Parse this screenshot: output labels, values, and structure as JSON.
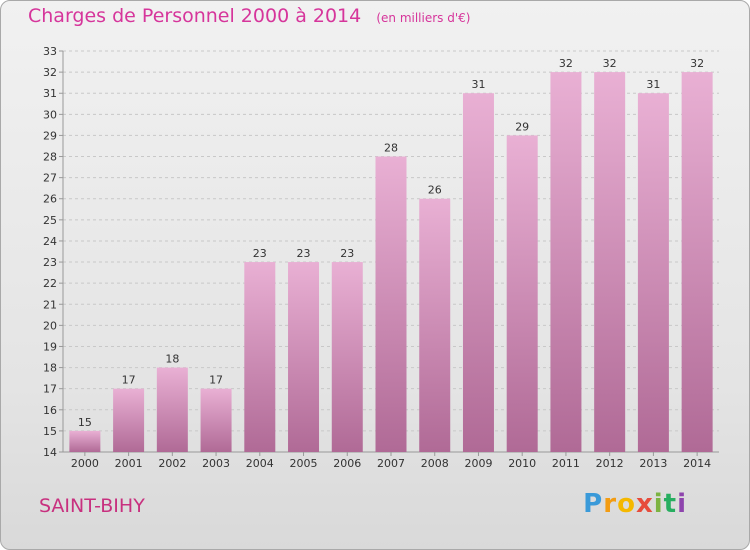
{
  "title": "Charges de Personnel 2000 à 2014",
  "subtitle": "(en milliers d'€)",
  "city": "SAINT-BIHY",
  "brand": {
    "letters": [
      "P",
      "r",
      "o",
      "x",
      "i",
      "t",
      "i"
    ],
    "colors": [
      "#3a9ad9",
      "#f39c12",
      "#f5b800",
      "#e74c3c",
      "#7cb342",
      "#27ae60",
      "#8e44ad"
    ]
  },
  "colors": {
    "title": "#d6359b",
    "bar_top": "#e9b0d4",
    "bar_bottom": "#b06a96",
    "grid": "#c8c8c8",
    "axis": "#999999"
  },
  "chart_data": {
    "type": "bar",
    "categories": [
      "2000",
      "2001",
      "2002",
      "2003",
      "2004",
      "2005",
      "2006",
      "2007",
      "2008",
      "2009",
      "2010",
      "2011",
      "2012",
      "2013",
      "2014"
    ],
    "values": [
      15,
      17,
      18,
      17,
      23,
      23,
      23,
      28,
      26,
      31,
      29,
      32,
      32,
      31,
      32
    ],
    "title": "Charges de Personnel 2000 à 2014",
    "ylim": [
      14,
      33
    ],
    "yticks": [
      14,
      15,
      16,
      17,
      18,
      19,
      20,
      21,
      22,
      23,
      24,
      25,
      26,
      27,
      28,
      29,
      30,
      31,
      32,
      33
    ],
    "grid": true,
    "data_labels": true
  }
}
